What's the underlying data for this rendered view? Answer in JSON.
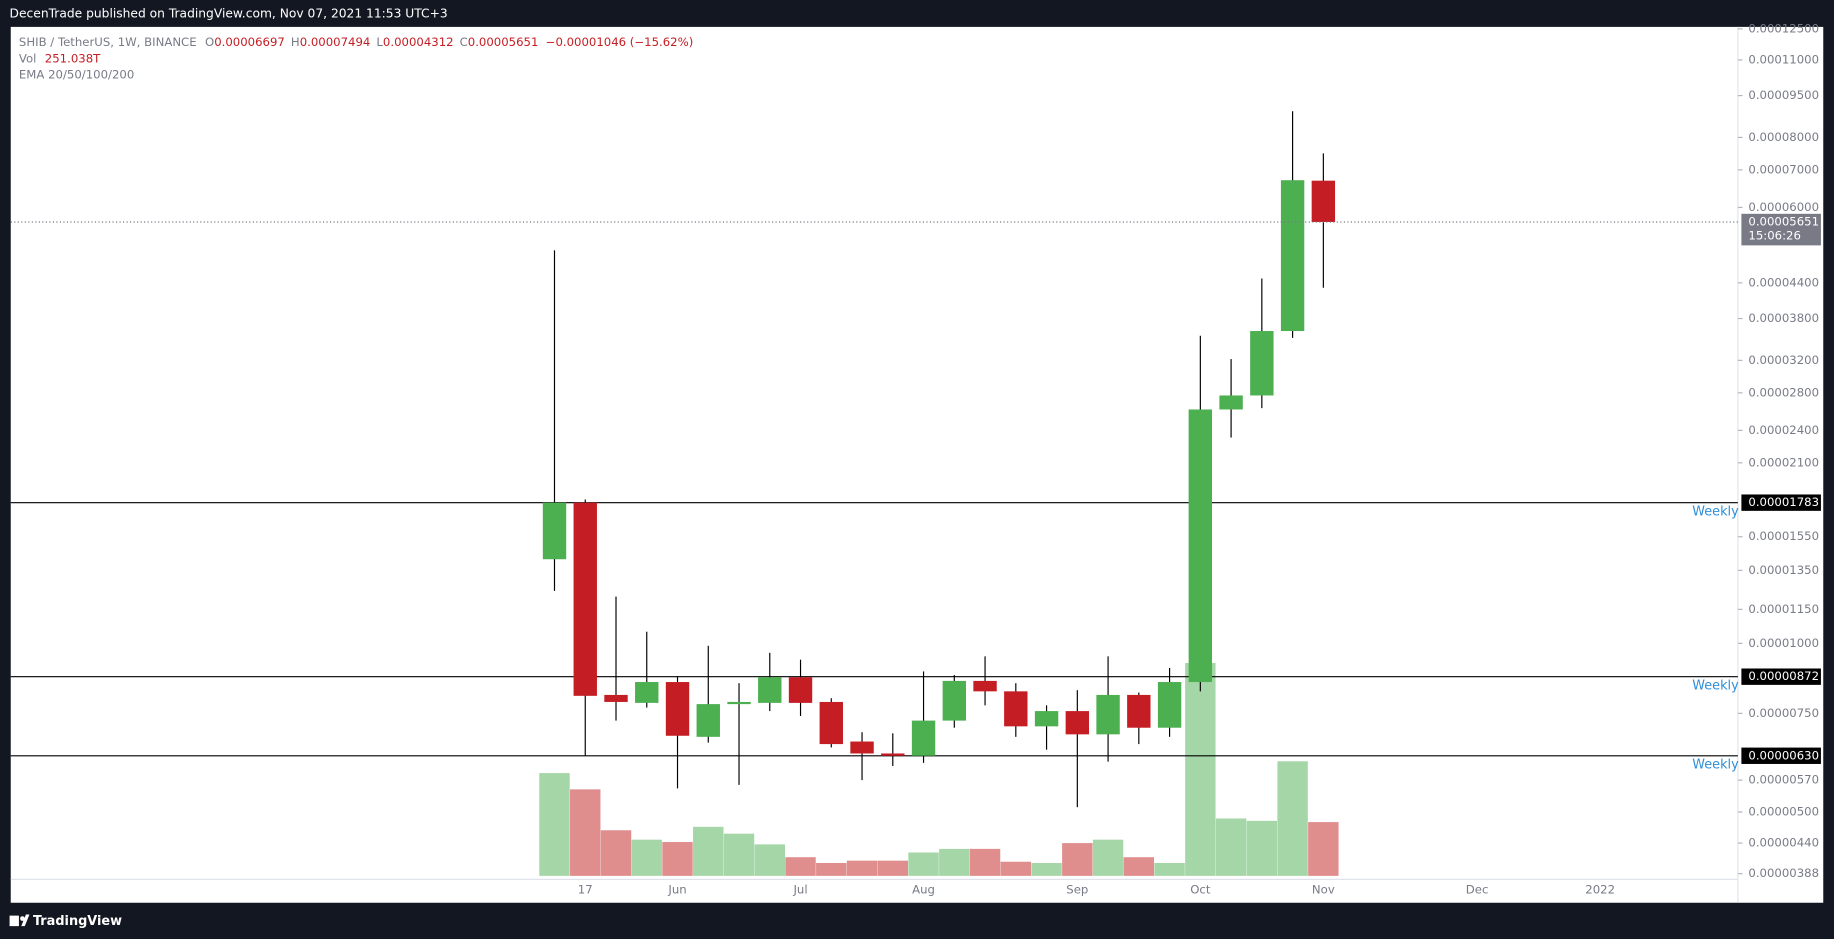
{
  "header": {
    "published": "DecenTrade published on TradingView.com, Nov 07, 2021 11:53 UTC+3",
    "symbol": "SHIB / TetherUS, 1W, BINANCE",
    "o": "O",
    "h": "H",
    "l": "L",
    "c": "C",
    "change": "−0.00001046 (−15.62%)",
    "vol": "Vol",
    "vol_value": "251.038T",
    "ema": "EMA 20/50/100/200",
    "countdown": "15:06:26"
  },
  "footer": {
    "brand": "TradingView"
  },
  "chart_data": {
    "type": "candlestick",
    "log_scale": true,
    "up_color": "#4caf50",
    "down_color": "#c51d24",
    "volume_up_color": "#a5d6a7",
    "volume_down_color": "#df8d8d",
    "categories": [
      null,
      "17",
      null,
      null,
      "Jun",
      null,
      null,
      null,
      "Jul",
      null,
      null,
      null,
      "Aug",
      null,
      null,
      null,
      null,
      "Sep",
      null,
      null,
      null,
      "Oct",
      null,
      null,
      null,
      "Nov",
      null,
      null,
      null,
      null,
      "Dec",
      null,
      null,
      null,
      "2022"
    ],
    "open": [
      1.413e-05,
      1.783e-05,
      8.09e-06,
      7.83e-06,
      8.53e-06,
      6.81e-06,
      7.79e-06,
      7.83e-06,
      8.7e-06,
      7.86e-06,
      6.68e-06,
      6.36e-06,
      6.3e-06,
      7.28e-06,
      8.57e-06,
      8.21e-06,
      7.11e-06,
      7.57e-06,
      6.88e-06,
      8.09e-06,
      7.07e-06,
      8.53e-06,
      2.615e-05,
      2.77e-05,
      3.61e-05,
      6.697e-05,
      null,
      null,
      null,
      null,
      null,
      null,
      null,
      null,
      null
    ],
    "high": [
      5.03e-05,
      1.806e-05,
      1.212e-05,
      1.049e-05,
      8.74e-06,
      9.9e-06,
      8.49e-06,
      9.62e-06,
      9.35e-06,
      7.98e-06,
      6.94e-06,
      6.91e-06,
      8.91e-06,
      8.78e-06,
      9.48e-06,
      8.49e-06,
      7.75e-06,
      8.25e-06,
      9.48e-06,
      8.17e-06,
      9.04e-06,
      3.54e-05,
      3.217e-05,
      4.48e-05,
      8.91e-05,
      7.494e-05,
      null,
      null,
      null,
      null,
      null,
      null,
      null,
      null,
      null
    ],
    "low": [
      1.241e-05,
      6.3e-06,
      7.28e-06,
      7.68e-06,
      5.51e-06,
      6.65e-06,
      5.59e-06,
      7.57e-06,
      7.42e-06,
      6.52e-06,
      5.7e-06,
      6.04e-06,
      6.12e-06,
      7.07e-06,
      7.75e-06,
      6.81e-06,
      6.46e-06,
      5.1e-06,
      6.15e-06,
      6.61e-06,
      6.81e-06,
      8.21e-06,
      2.33e-05,
      2.63e-05,
      3.51e-05,
      4.312e-05,
      null,
      null,
      null,
      null,
      null,
      null,
      null,
      null,
      null
    ],
    "close": [
      1.783e-05,
      8.06e-06,
      7.86e-06,
      8.53e-06,
      6.84e-06,
      7.79e-06,
      7.86e-06,
      8.7e-06,
      7.83e-06,
      6.61e-06,
      6.36e-06,
      6.3e-06,
      7.28e-06,
      8.57e-06,
      8.21e-06,
      7.11e-06,
      7.57e-06,
      6.88e-06,
      8.09e-06,
      7.07e-06,
      8.53e-06,
      2.615e-05,
      2.77e-05,
      3.61e-05,
      6.71e-05,
      5.651e-05,
      null,
      null,
      null,
      null,
      null,
      null,
      null,
      null,
      null
    ],
    "volume": [
      480,
      404,
      213,
      169,
      158,
      229,
      197,
      147,
      87,
      60,
      71,
      71,
      109,
      126,
      126,
      66,
      60,
      153,
      169,
      87,
      60,
      994,
      268,
      257,
      535,
      251.038,
      null,
      null,
      null,
      null,
      null,
      null,
      null,
      null,
      null
    ],
    "ylim": [
      3.46e-06,
      0.000126
    ],
    "yticks": [
      {
        "value": 0.000125,
        "label": "0.00012500"
      },
      {
        "value": 0.00011,
        "label": "0.00011000"
      },
      {
        "value": 9.5e-05,
        "label": "0.00009500"
      },
      {
        "value": 8e-05,
        "label": "0.00008000"
      },
      {
        "value": 7e-05,
        "label": "0.00007000"
      },
      {
        "value": 6e-05,
        "label": "0.00006000"
      },
      {
        "value": 4.4e-05,
        "label": "0.00004400"
      },
      {
        "value": 3.8e-05,
        "label": "0.00003800"
      },
      {
        "value": 3.2e-05,
        "label": "0.00003200"
      },
      {
        "value": 2.8e-05,
        "label": "0.00002800"
      },
      {
        "value": 2.4e-05,
        "label": "0.00002400"
      },
      {
        "value": 2.1e-05,
        "label": "0.00002100"
      },
      {
        "value": 1.55e-05,
        "label": "0.00001550"
      },
      {
        "value": 1.35e-05,
        "label": "0.00001350"
      },
      {
        "value": 1.15e-05,
        "label": "0.00001150"
      },
      {
        "value": 1e-05,
        "label": "0.00001000"
      },
      {
        "value": 7.5e-06,
        "label": "0.00000750"
      },
      {
        "value": 5.7e-06,
        "label": "0.00000570"
      },
      {
        "value": 5e-06,
        "label": "0.00000500"
      },
      {
        "value": 4.4e-06,
        "label": "0.00000440"
      },
      {
        "value": 3.88e-06,
        "label": "0.00000388"
      }
    ],
    "levels": [
      {
        "value": 1.783e-05,
        "label": "0.00001783",
        "text": "Weekly"
      },
      {
        "value": 8.72e-06,
        "label": "0.00000872",
        "text": "Weekly"
      },
      {
        "value": 6.3e-06,
        "label": "0.00000630",
        "text": "Weekly"
      }
    ]
  }
}
